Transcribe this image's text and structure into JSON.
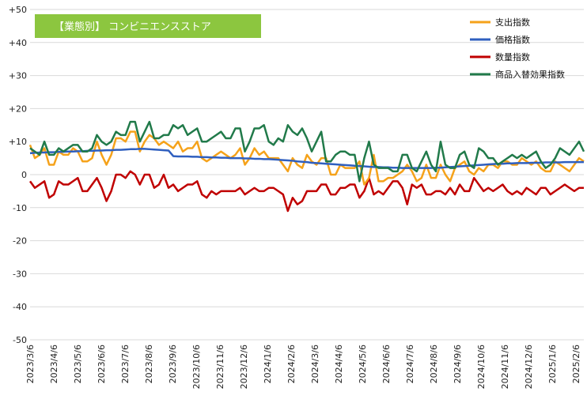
{
  "chart_data": {
    "type": "line",
    "title": "【業態別】 コンビニエンスストア",
    "ylim": [
      -50,
      50
    ],
    "yticks": [
      "+50",
      "+40",
      "+30",
      "+20",
      "+10",
      "0",
      "-10",
      "-20",
      "-30",
      "-40",
      "-50"
    ],
    "ytick_values": [
      50,
      40,
      30,
      20,
      10,
      0,
      -10,
      -20,
      -30,
      -40,
      -50
    ],
    "grid": true,
    "legend_position": "top-right",
    "x_labels": [
      "2023/3/6",
      "2023/4/6",
      "2023/5/6",
      "2023/6/6",
      "2023/7/6",
      "2023/8/6",
      "2023/9/6",
      "2023/10/6",
      "2023/11/6",
      "2023/12/6",
      "2024/1/6",
      "2024/2/6",
      "2024/3/6",
      "2024/4/6",
      "2024/5/6",
      "2024/6/6",
      "2024/7/6",
      "2024/8/6",
      "2024/9/6",
      "2024/10/6",
      "2024/11/6",
      "2024/12/6",
      "2025/1/6",
      "2025/2/6"
    ],
    "series": [
      {
        "name": "支出指数",
        "color": "#f5a21a",
        "values": [
          9,
          5,
          6,
          8,
          3,
          3,
          7,
          6,
          6,
          8,
          7,
          4,
          4,
          5,
          10,
          6,
          3,
          6,
          11,
          11,
          10,
          13,
          13,
          7,
          10,
          12,
          11,
          9,
          10,
          9,
          8,
          10,
          7,
          8,
          8,
          10,
          5,
          4,
          5,
          6,
          7,
          6,
          5,
          6,
          8,
          3,
          5,
          8,
          6,
          7,
          5,
          5,
          5,
          3,
          1,
          5,
          3,
          2,
          6,
          4,
          3,
          5,
          5,
          0,
          0,
          3,
          2,
          2,
          2,
          4,
          -3,
          -1,
          6,
          -2,
          -2,
          -1,
          -1,
          0,
          1,
          3,
          1,
          -2,
          -1,
          3,
          -1,
          -1,
          3,
          0,
          -2,
          2,
          3,
          4,
          1,
          0,
          2,
          1,
          3,
          3,
          2,
          4,
          4,
          3,
          3,
          5,
          4,
          3,
          4,
          2,
          1,
          1,
          4,
          3,
          2,
          1,
          3,
          5,
          4
        ],
        "bind": "chart_data.series.0.name"
      },
      {
        "name": "価格指数",
        "color": "#2f5fbf",
        "values": [
          6.5,
          6.6,
          6.7,
          6.7,
          6.8,
          6.8,
          6.9,
          6.9,
          7.0,
          7.0,
          7.1,
          7.1,
          7.2,
          7.2,
          7.3,
          7.3,
          7.4,
          7.4,
          7.5,
          7.5,
          7.6,
          7.7,
          7.7,
          7.8,
          7.8,
          7.7,
          7.6,
          7.5,
          7.4,
          7.3,
          5.6,
          5.5,
          5.5,
          5.5,
          5.4,
          5.4,
          5.3,
          5.3,
          5.2,
          5.2,
          5.1,
          5.1,
          5.0,
          5.0,
          5.0,
          4.9,
          4.9,
          4.8,
          4.8,
          4.7,
          4.7,
          4.6,
          4.5,
          4.4,
          4.3,
          4.2,
          4.0,
          3.9,
          3.8,
          3.6,
          3.5,
          3.4,
          3.3,
          3.2,
          3.1,
          3.0,
          2.9,
          2.8,
          2.7,
          2.6,
          2.5,
          2.4,
          2.3,
          2.3,
          2.2,
          2.2,
          2.1,
          2.1,
          2.0,
          2.0,
          2.0,
          2.0,
          2.0,
          2.0,
          2.0,
          2.1,
          2.1,
          2.2,
          2.3,
          2.4,
          2.5,
          2.6,
          2.7,
          2.8,
          2.9,
          3.0,
          3.1,
          3.2,
          3.3,
          3.3,
          3.4,
          3.4,
          3.5,
          3.5,
          3.5,
          3.6,
          3.6,
          3.6,
          3.7,
          3.7,
          3.7,
          3.7,
          3.8,
          3.8,
          3.8,
          3.8,
          3.8
        ],
        "bind": "chart_data.series.1.name"
      },
      {
        "name": "数量指数",
        "color": "#c00000",
        "values": [
          -2,
          -4,
          -3,
          -2,
          -7,
          -6,
          -2,
          -3,
          -3,
          -2,
          -1,
          -5,
          -5,
          -3,
          -1,
          -4,
          -8,
          -5,
          0,
          0,
          -1,
          1,
          0,
          -3,
          0,
          0,
          -4,
          -3,
          0,
          -4,
          -3,
          -5,
          -4,
          -3,
          -3,
          -2,
          -6,
          -7,
          -5,
          -6,
          -5,
          -5,
          -5,
          -5,
          -4,
          -6,
          -5,
          -4,
          -5,
          -5,
          -4,
          -4,
          -5,
          -6,
          -11,
          -7,
          -9,
          -8,
          -5,
          -5,
          -5,
          -3,
          -3,
          -6,
          -6,
          -4,
          -4,
          -3,
          -3,
          -7,
          -5,
          -1,
          -6,
          -5,
          -6,
          -4,
          -2,
          -2,
          -4,
          -9,
          -3,
          -4,
          -3,
          -6,
          -6,
          -5,
          -5,
          -6,
          -4,
          -6,
          -3,
          -5,
          -5,
          -1,
          -3,
          -5,
          -4,
          -5,
          -4,
          -3,
          -5,
          -6,
          -5,
          -6,
          -4,
          -5,
          -6,
          -4,
          -4,
          -6,
          -5,
          -4,
          -3,
          -4,
          -5,
          -4,
          -4
        ],
        "bind": "chart_data.series.2.name"
      },
      {
        "name": "商品入替効果指数",
        "color": "#217a4a",
        "values": [
          8,
          7,
          6,
          10,
          6,
          6,
          8,
          7,
          8,
          9,
          9,
          7,
          7,
          8,
          12,
          10,
          9,
          10,
          13,
          12,
          12,
          16,
          16,
          10,
          13,
          16,
          11,
          11,
          12,
          12,
          15,
          14,
          15,
          12,
          13,
          14,
          10,
          10,
          11,
          12,
          13,
          11,
          11,
          14,
          14,
          7,
          10,
          14,
          14,
          15,
          10,
          9,
          11,
          10,
          15,
          13,
          12,
          14,
          11,
          7,
          10,
          13,
          4,
          4,
          6,
          7,
          7,
          6,
          6,
          -2,
          5,
          10,
          3,
          2,
          2,
          2,
          1,
          1,
          6,
          6,
          2,
          1,
          4,
          7,
          3,
          1,
          10,
          3,
          2,
          2,
          6,
          7,
          3,
          2,
          8,
          7,
          5,
          5,
          3,
          4,
          5,
          6,
          5,
          6,
          5,
          6,
          7,
          4,
          2,
          3,
          5,
          8,
          7,
          6,
          8,
          10,
          7
        ],
        "bind": "chart_data.series.3.name"
      }
    ]
  }
}
